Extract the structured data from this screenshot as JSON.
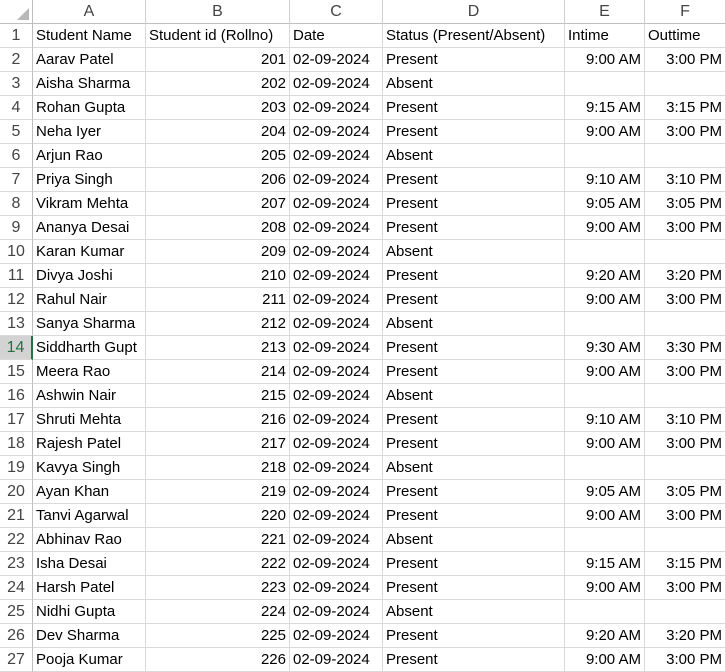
{
  "columns": [
    "A",
    "B",
    "C",
    "D",
    "E",
    "F"
  ],
  "header_row": [
    "Student Name",
    "Student id (Rollno)",
    "Date",
    "Status (Present/Absent)",
    "Intime",
    "Outtime"
  ],
  "selected_row": 14,
  "rows": [
    [
      "Aarav Patel",
      "201",
      "02-09-2024",
      "Present",
      "9:00 AM",
      "3:00 PM"
    ],
    [
      "Aisha Sharma",
      "202",
      "02-09-2024",
      "Absent",
      "",
      ""
    ],
    [
      "Rohan Gupta",
      "203",
      "02-09-2024",
      "Present",
      "9:15 AM",
      "3:15 PM"
    ],
    [
      "Neha Iyer",
      "204",
      "02-09-2024",
      "Present",
      "9:00 AM",
      "3:00 PM"
    ],
    [
      "Arjun Rao",
      "205",
      "02-09-2024",
      "Absent",
      "",
      ""
    ],
    [
      "Priya Singh",
      "206",
      "02-09-2024",
      "Present",
      "9:10 AM",
      "3:10 PM"
    ],
    [
      "Vikram Mehta",
      "207",
      "02-09-2024",
      "Present",
      "9:05 AM",
      "3:05 PM"
    ],
    [
      "Ananya Desai",
      "208",
      "02-09-2024",
      "Present",
      "9:00 AM",
      "3:00 PM"
    ],
    [
      "Karan Kumar",
      "209",
      "02-09-2024",
      "Absent",
      "",
      ""
    ],
    [
      "Divya Joshi",
      "210",
      "02-09-2024",
      "Present",
      "9:20 AM",
      "3:20 PM"
    ],
    [
      "Rahul Nair",
      "211",
      "02-09-2024",
      "Present",
      "9:00 AM",
      "3:00 PM"
    ],
    [
      "Sanya Sharma",
      "212",
      "02-09-2024",
      "Absent",
      "",
      ""
    ],
    [
      "Siddharth Gupt",
      "213",
      "02-09-2024",
      "Present",
      "9:30 AM",
      "3:30 PM"
    ],
    [
      "Meera Rao",
      "214",
      "02-09-2024",
      "Present",
      "9:00 AM",
      "3:00 PM"
    ],
    [
      "Ashwin Nair",
      "215",
      "02-09-2024",
      "Absent",
      "",
      ""
    ],
    [
      "Shruti Mehta",
      "216",
      "02-09-2024",
      "Present",
      "9:10 AM",
      "3:10 PM"
    ],
    [
      "Rajesh Patel",
      "217",
      "02-09-2024",
      "Present",
      "9:00 AM",
      "3:00 PM"
    ],
    [
      "Kavya Singh",
      "218",
      "02-09-2024",
      "Absent",
      "",
      ""
    ],
    [
      "Ayan Khan",
      "219",
      "02-09-2024",
      "Present",
      "9:05 AM",
      "3:05 PM"
    ],
    [
      "Tanvi Agarwal",
      "220",
      "02-09-2024",
      "Present",
      "9:00 AM",
      "3:00 PM"
    ],
    [
      "Abhinav Rao",
      "221",
      "02-09-2024",
      "Absent",
      "",
      ""
    ],
    [
      "Isha Desai",
      "222",
      "02-09-2024",
      "Present",
      "9:15 AM",
      "3:15 PM"
    ],
    [
      "Harsh Patel",
      "223",
      "02-09-2024",
      "Present",
      "9:00 AM",
      "3:00 PM"
    ],
    [
      "Nidhi Gupta",
      "224",
      "02-09-2024",
      "Absent",
      "",
      ""
    ],
    [
      "Dev Sharma",
      "225",
      "02-09-2024",
      "Present",
      "9:20 AM",
      "3:20 PM"
    ],
    [
      "Pooja Kumar",
      "226",
      "02-09-2024",
      "Present",
      "9:00 AM",
      "3:00 PM"
    ]
  ],
  "colors": {
    "grid": "#d9d9d9",
    "header_text": "#444444",
    "selected_row_bg": "#d3d3d3",
    "accent": "#217346"
  }
}
